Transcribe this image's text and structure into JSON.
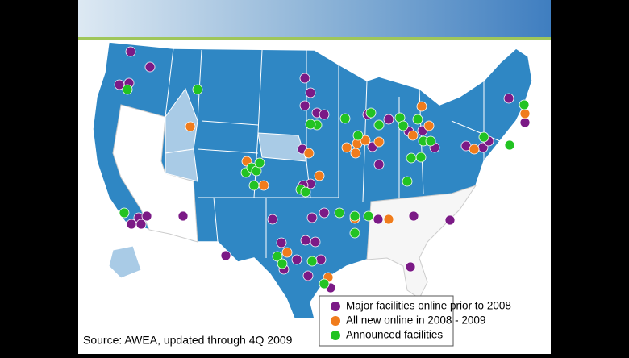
{
  "legend": {
    "items": [
      {
        "label": "Major facilities online prior to 2008",
        "color": "#7b1a86"
      },
      {
        "label": "All new online in 2008 - 2009",
        "color": "#f07c1c"
      },
      {
        "label": "Announced facilities",
        "color": "#22c322"
      }
    ]
  },
  "source": "Source: AWEA, updated through 4Q 2009"
}
